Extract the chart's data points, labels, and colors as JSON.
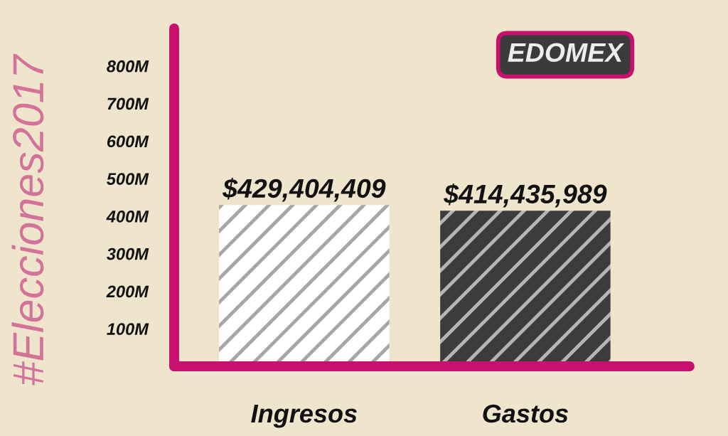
{
  "chart_data": {
    "type": "bar",
    "title": "EDOMEX",
    "categories": [
      "Ingresos",
      "Gastos"
    ],
    "values": [
      429404409,
      414435989
    ],
    "colors": [
      "#ffffff",
      "#3c3c3c"
    ],
    "value_labels": [
      "$429,404,409",
      "$414,435,989"
    ],
    "ylim": [
      0,
      900000000
    ],
    "yticks": [
      {
        "value": 100000000,
        "label": "100M"
      },
      {
        "value": 200000000,
        "label": "200M"
      },
      {
        "value": 300000000,
        "label": "300M"
      },
      {
        "value": 400000000,
        "label": "400M"
      },
      {
        "value": 500000000,
        "label": "500M"
      },
      {
        "value": 600000000,
        "label": "600M"
      },
      {
        "value": 700000000,
        "label": "700M"
      },
      {
        "value": 800000000,
        "label": "800M"
      }
    ],
    "annotations": [
      "#Elecciones2017"
    ],
    "grid": false,
    "legend": false
  }
}
